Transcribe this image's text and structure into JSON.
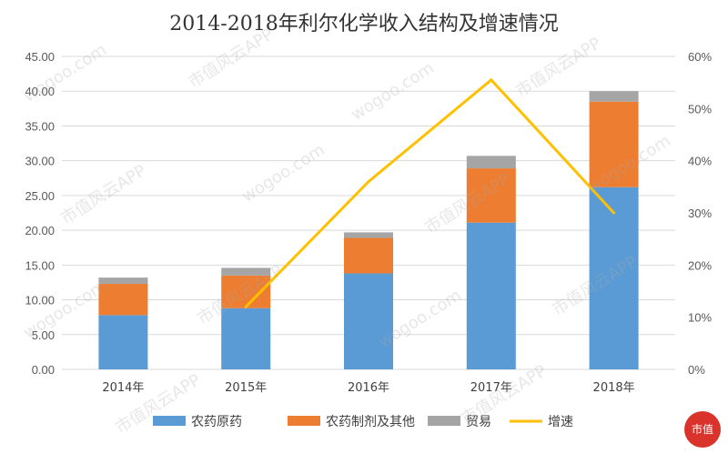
{
  "chart_data": {
    "type": "bar",
    "title": "2014-2018年利尔化学收入结构及增速情况",
    "categories": [
      "2014年",
      "2015年",
      "2016年",
      "2017年",
      "2018年"
    ],
    "series": [
      {
        "name": "农药原药",
        "type": "bar",
        "color": "#5b9bd5",
        "values": [
          7.8,
          8.8,
          13.8,
          21.1,
          26.2
        ]
      },
      {
        "name": "农药制剂及其他",
        "type": "bar",
        "color": "#ed7d31",
        "values": [
          4.5,
          4.7,
          5.1,
          7.8,
          12.3
        ]
      },
      {
        "name": "贸易",
        "type": "bar",
        "color": "#a5a5a5",
        "values": [
          0.9,
          1.1,
          0.8,
          1.8,
          1.5
        ]
      },
      {
        "name": "增速",
        "type": "line",
        "axis": "right",
        "color": "#ffc000",
        "values": [
          null,
          0.12,
          0.36,
          0.555,
          0.3
        ]
      }
    ],
    "y_left": {
      "min": 0,
      "max": 45,
      "step": 5,
      "ticks": [
        "0.00",
        "5.00",
        "10.00",
        "15.00",
        "20.00",
        "25.00",
        "30.00",
        "35.00",
        "40.00",
        "45.00"
      ]
    },
    "y_right": {
      "min": 0,
      "max": 0.6,
      "step": 0.1,
      "ticks": [
        "0%",
        "10%",
        "20%",
        "30%",
        "40%",
        "50%",
        "60%"
      ]
    },
    "legend_position": "bottom",
    "grid": true
  },
  "watermark": {
    "text": "市值风云APP",
    "site": "wogoo.com",
    "stamp": "市值"
  }
}
